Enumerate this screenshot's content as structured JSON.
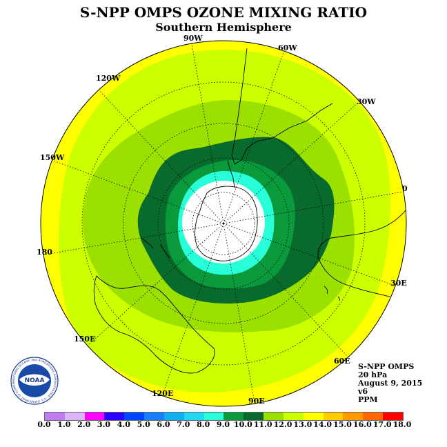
{
  "title": "S-NPP OMPS OZONE MIXING RATIO",
  "subtitle": "Southern Hemisphere",
  "info": {
    "product": "S-NPP OMPS",
    "level": "20 hPa",
    "date": "August 9, 2015",
    "version": "v6",
    "unit": "PPM"
  },
  "longitude_labels": [
    "90W",
    "60W",
    "30W",
    "0",
    "30E",
    "60E",
    "90E",
    "120E",
    "150E",
    "180",
    "150W",
    "120W"
  ],
  "logo": {
    "text": "NOAA",
    "ring_text": "NATIONAL OCEANIC AND ATMOSPHERIC ADMINISTRATION · U.S. DEPARTMENT OF COMMERCE"
  },
  "colorbar": {
    "tick_labels": [
      "0.0",
      "1.0",
      "2.0",
      "3.0",
      "4.0",
      "5.0",
      "6.0",
      "7.0",
      "8.0",
      "9.0",
      "10.0",
      "11.0",
      "12.0",
      "13.0",
      "14.0",
      "15.0",
      "16.0",
      "17.0",
      "18.0"
    ],
    "colors": [
      "#c07cf0",
      "#dcb4f8",
      "#ff00ff",
      "#2a00ff",
      "#0044ff",
      "#1a7cff",
      "#10b0f0",
      "#20d8f0",
      "#28ffd8",
      "#0a9a3c",
      "#086a2c",
      "#9be000",
      "#ccff00",
      "#ffff00",
      "#ffcc00",
      "#ff9a00",
      "#ff6600",
      "#ff0000",
      "#8a5a30"
    ]
  },
  "colors": {
    "background_outer": "#ffff00",
    "land_outline": "#000000",
    "grid": "#000000",
    "pole_center": "#ffffff"
  }
}
